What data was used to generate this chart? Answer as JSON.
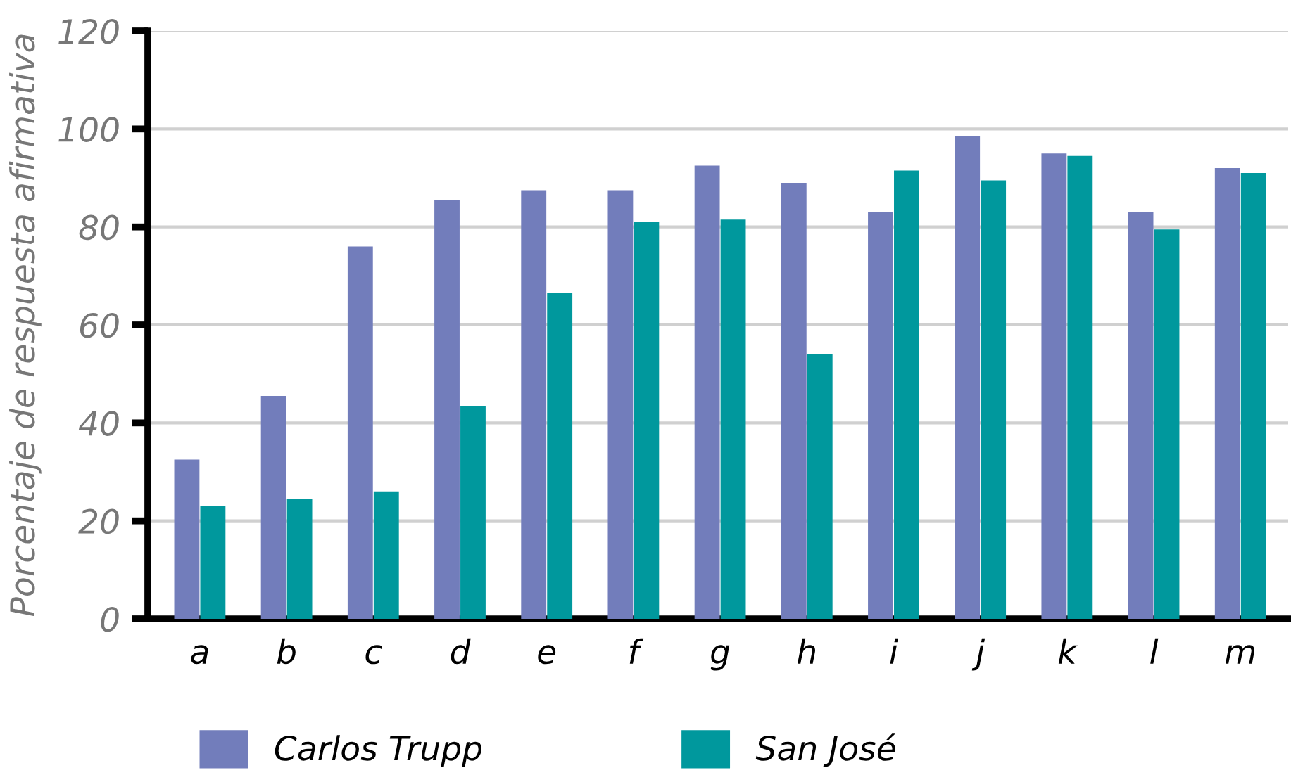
{
  "chart_data": {
    "type": "bar",
    "ylabel": "Porcentaje de respuesta afirmativa",
    "categories": [
      "a",
      "b",
      "c",
      "d",
      "e",
      "f",
      "g",
      "h",
      "i",
      "j",
      "k",
      "l",
      "m"
    ],
    "series": [
      {
        "name": "Carlos Trupp",
        "color": "#727dbb",
        "values": [
          32.5,
          45.5,
          76,
          85.5,
          87.5,
          87.5,
          92.5,
          89,
          83,
          98.5,
          95,
          83,
          92
        ]
      },
      {
        "name": "San José",
        "color": "#00989d",
        "values": [
          23,
          24.5,
          26,
          43.5,
          66.5,
          81,
          81.5,
          54,
          91.5,
          89.5,
          94.5,
          79.5,
          91
        ]
      }
    ],
    "ylim": [
      0,
      120
    ],
    "yticks": [
      0,
      20,
      40,
      60,
      80,
      100,
      120
    ],
    "grid": "y",
    "legend": "bottom left"
  }
}
